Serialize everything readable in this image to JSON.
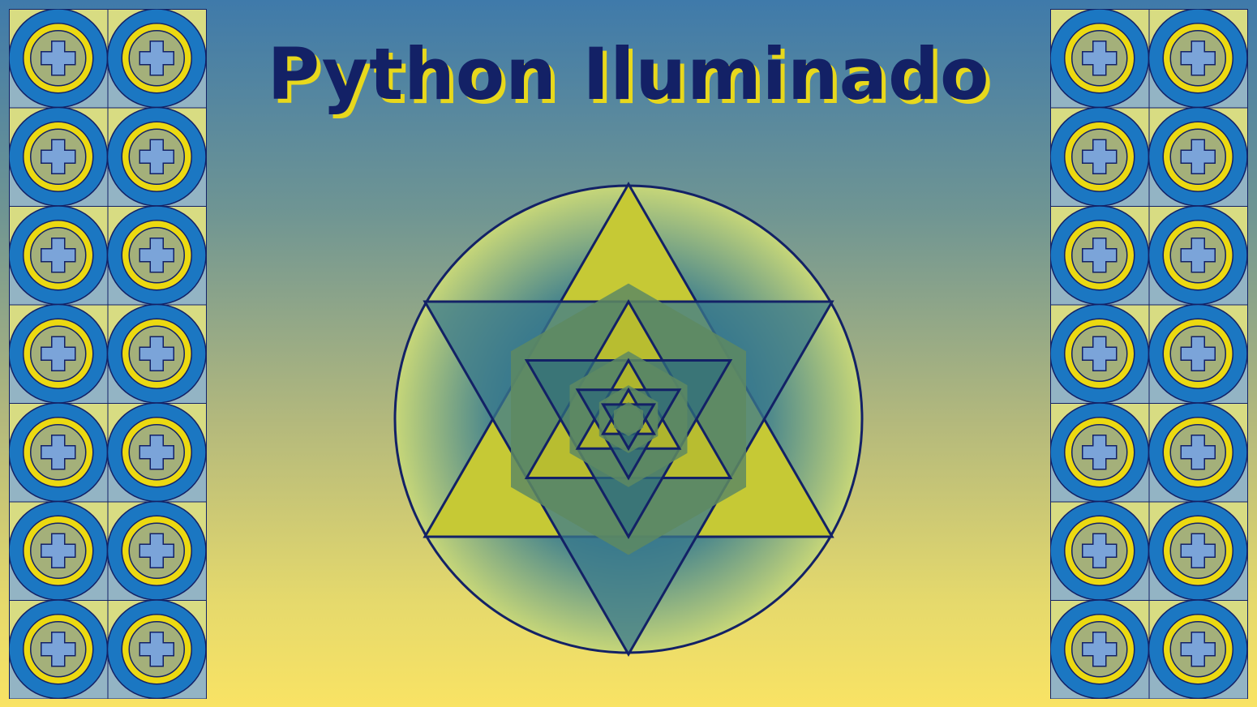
{
  "title": "Python Iluminado",
  "palette": {
    "navy": "#132166",
    "blue": "#1b77c2",
    "yellow": "#ecd911",
    "periwinkle": "#7ba4d9",
    "olive": "#c3c533",
    "teal": "#3f7c8a"
  },
  "decor": {
    "tile_columns": 2,
    "tile_rows": 7,
    "tile_icon": "plus-circle-icon",
    "mandala_icon": "star-of-david-icon",
    "nested_star_levels": 4
  }
}
